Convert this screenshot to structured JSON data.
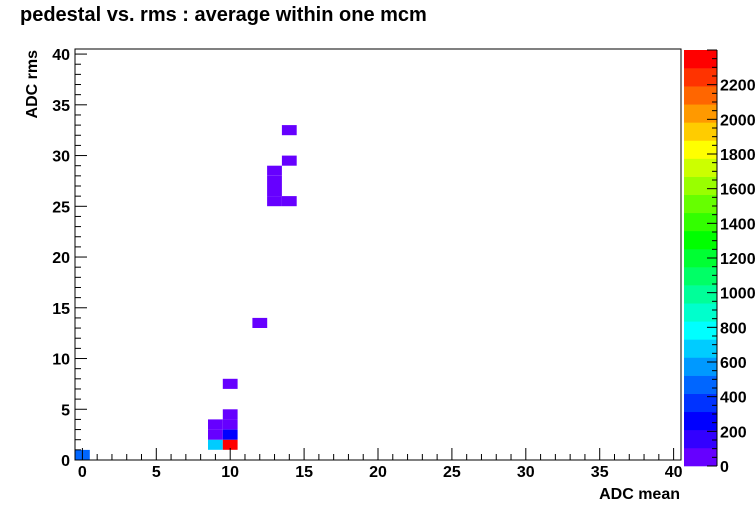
{
  "chart_data": {
    "type": "heatmap",
    "title": "pedestal vs. rms : average within one mcm",
    "xlabel": "ADC mean",
    "ylabel": "ADC rms",
    "xlim": [
      -0.5,
      40.5
    ],
    "ylim": [
      0,
      40.5
    ],
    "x_ticks": [
      "0",
      "5",
      "10",
      "15",
      "20",
      "25",
      "30",
      "35",
      "40"
    ],
    "y_ticks": [
      "0",
      "5",
      "10",
      "15",
      "20",
      "25",
      "30",
      "35",
      "40"
    ],
    "grid": false,
    "colorbar": {
      "min": 0,
      "max": 2400,
      "ticks": [
        "0",
        "200",
        "400",
        "600",
        "800",
        "1000",
        "1200",
        "1400",
        "1600",
        "1800",
        "2000",
        "2200"
      ],
      "colors": [
        "#6600ff",
        "#3300ff",
        "#0000ff",
        "#0033ff",
        "#0066ff",
        "#0099ff",
        "#00ccff",
        "#00ffff",
        "#00ffcc",
        "#00ff99",
        "#00ff66",
        "#00ff33",
        "#00ff00",
        "#33ff00",
        "#66ff00",
        "#99ff00",
        "#ccff00",
        "#ffff00",
        "#ffcc00",
        "#ff9900",
        "#ff6600",
        "#ff3300",
        "#ff0000"
      ]
    },
    "cells": [
      {
        "x": 0,
        "y": 0,
        "value": 450
      },
      {
        "x": 9,
        "y": 1,
        "value": 700
      },
      {
        "x": 10,
        "y": 1,
        "value": 2380
      },
      {
        "x": 9,
        "y": 2,
        "value": 60
      },
      {
        "x": 10,
        "y": 2,
        "value": 300
      },
      {
        "x": 9,
        "y": 3,
        "value": 60
      },
      {
        "x": 10,
        "y": 3,
        "value": 60
      },
      {
        "x": 10,
        "y": 4,
        "value": 60
      },
      {
        "x": 10,
        "y": 7,
        "value": 60
      },
      {
        "x": 12,
        "y": 13,
        "value": 60
      },
      {
        "x": 13,
        "y": 25,
        "value": 60
      },
      {
        "x": 14,
        "y": 25,
        "value": 60
      },
      {
        "x": 13,
        "y": 26,
        "value": 60
      },
      {
        "x": 13,
        "y": 27,
        "value": 60
      },
      {
        "x": 13,
        "y": 28,
        "value": 60
      },
      {
        "x": 14,
        "y": 29,
        "value": 60
      },
      {
        "x": 14,
        "y": 32,
        "value": 60
      }
    ]
  }
}
